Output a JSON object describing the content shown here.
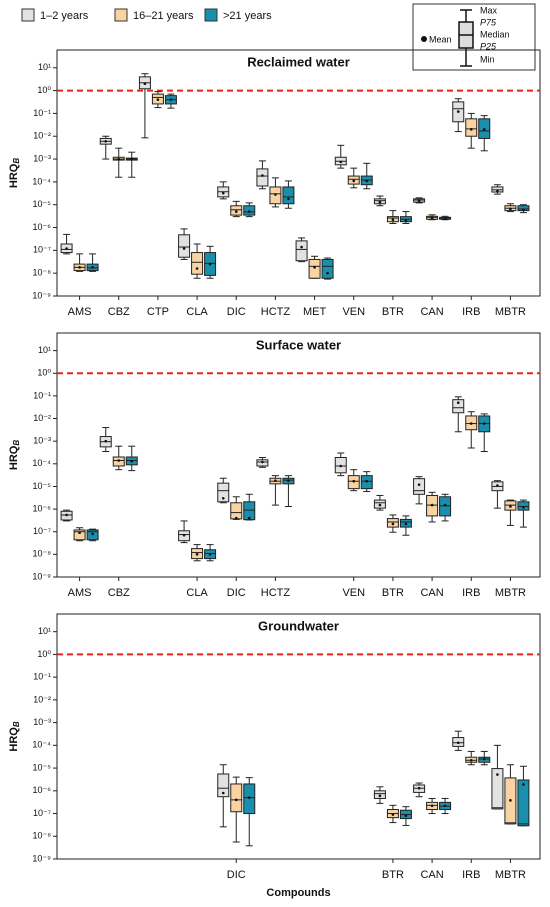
{
  "legend": {
    "series": [
      {
        "name": "1–2 years",
        "color": "#e2e2e2"
      },
      {
        "name": "16–21 years",
        "color": "#f9d3a1"
      },
      {
        ">": null,
        "name": ">21 years",
        "color": "#1a8fab"
      }
    ],
    "key": {
      "mean": "Mean",
      "max": "Max",
      "p75": "P75",
      "median": "Median",
      "p25": "P25",
      "min": "Min"
    }
  },
  "chart_data": [
    {
      "type": "box",
      "title": "Reclaimed water",
      "ylabel": "HRQ",
      "ylabel_sub": "B",
      "log_scale": true,
      "ylim": [
        1e-09,
        60
      ],
      "yticks": [
        {
          "value": 10,
          "label": "10¹"
        },
        {
          "value": 1,
          "label": "10⁰"
        },
        {
          "value": 0.1,
          "label": "10⁻¹"
        },
        {
          "value": 0.01,
          "label": "10⁻²"
        },
        {
          "value": 0.001,
          "label": "10⁻³"
        },
        {
          "value": 0.0001,
          "label": "10⁻⁴"
        },
        {
          "value": 1e-05,
          "label": "10⁻⁵"
        },
        {
          "value": 1e-06,
          "label": "10⁻⁶"
        },
        {
          "value": 1e-07,
          "label": "10⁻⁷"
        },
        {
          "value": 1e-08,
          "label": "10⁻⁸"
        },
        {
          "value": 1e-09,
          "label": "10⁻⁹"
        }
      ],
      "reference_line": {
        "value": 1,
        "color": "#e8231c"
      },
      "categories": [
        "AMS",
        "CBZ",
        "CTP",
        "CLA",
        "DIC",
        "HCTZ",
        "MET",
        "VEN",
        "BTR",
        "CAN",
        "IRB",
        "MBTR"
      ],
      "series": [
        {
          "boxes": [
            [
              7e-08,
              8e-08,
              1.1e-07,
              1.9e-07,
              5e-07,
              1.2e-07
            ],
            [
              0.001,
              0.0045,
              0.006,
              0.008,
              0.01,
              0.006
            ],
            [
              0.0085,
              1.2,
              2.2,
              4,
              5.5,
              2
            ],
            [
              4e-08,
              5e-08,
              1.4e-07,
              4.8e-07,
              8.7e-07,
              1.2e-07
            ],
            [
              1.8e-05,
              2.2e-05,
              3.7e-05,
              6e-05,
              0.0001,
              3.2e-05
            ],
            [
              5e-05,
              6.6e-05,
              0.00018,
              0.00037,
              0.00083,
              0.00019
            ],
            [
              3.2e-08,
              3.5e-08,
              1.1e-07,
              2.6e-07,
              3.5e-07,
              1.4e-07
            ],
            [
              0.0004,
              0.00056,
              0.0008,
              0.0012,
              0.004,
              0.00075
            ],
            [
              9e-06,
              1.1e-05,
              1.5e-05,
              1.8e-05,
              2.4e-05,
              1.3e-05
            ],
            [
              1.2e-05,
              1.3e-05,
              1.6e-05,
              1.8e-05,
              2e-05,
              1.5e-05
            ],
            [
              0.016,
              0.043,
              0.16,
              0.32,
              0.44,
              0.12
            ],
            [
              2.9e-05,
              3.6e-05,
              4.5e-05,
              6e-05,
              7.5e-05,
              4e-05
            ]
          ]
        },
        {
          "boxes": [
            [
              1.2e-08,
              1.3e-08,
              1.8e-08,
              2.5e-08,
              7e-08,
              1.8e-08
            ],
            [
              0.00016,
              0.0009,
              0.001,
              0.0012,
              0.003,
              0.001
            ],
            [
              0.18,
              0.26,
              0.5,
              0.7,
              0.9,
              0.4
            ],
            [
              6e-09,
              9e-09,
              3e-08,
              8e-08,
              1.9e-07,
              1.6e-08
            ],
            [
              3e-06,
              3.5e-06,
              6e-06,
              9e-06,
              1.4e-05,
              5e-06
            ],
            [
              8e-06,
              1.1e-05,
              3e-05,
              6e-05,
              0.00015,
              2.8e-05
            ],
            [
              6e-09,
              6e-09,
              2e-08,
              4e-08,
              5.5e-08,
              1.8e-08
            ],
            [
              5.5e-05,
              8e-05,
              0.00013,
              0.00018,
              0.0004,
              0.00011
            ],
            [
              1.5e-06,
              1.8e-06,
              2.6e-06,
              3e-06,
              5.5e-06,
              2.2e-06
            ],
            [
              2.2e-06,
              2.3e-06,
              2.8e-06,
              3.1e-06,
              3.6e-06,
              2.6e-06
            ],
            [
              0.003,
              0.01,
              0.021,
              0.058,
              0.1,
              0.02
            ],
            [
              5e-06,
              5.5e-06,
              7e-06,
              9e-06,
              1.1e-05,
              6.5e-06
            ]
          ]
        },
        {
          "boxes": [
            [
              1.2e-08,
              1.3e-08,
              1.7e-08,
              2.5e-08,
              7e-08,
              1.8e-08
            ],
            [
              0.00016,
              0.0009,
              0.001,
              0.0011,
              0.002,
              0.001
            ],
            [
              0.17,
              0.26,
              0.4,
              0.6,
              0.7,
              0.4
            ],
            [
              6e-09,
              8e-09,
              2.7e-08,
              8e-08,
              1.5e-07,
              2.5e-08
            ],
            [
              3e-06,
              3.5e-06,
              4.8e-06,
              9e-06,
              1.2e-05,
              5e-06
            ],
            [
              7e-06,
              1.1e-05,
              2.2e-05,
              6e-05,
              0.00011,
              1.8e-05
            ],
            [
              5.5e-09,
              6e-09,
              2e-08,
              4e-08,
              4.6e-08,
              1e-08
            ],
            [
              5e-05,
              7.5e-05,
              0.00012,
              0.00018,
              0.00065,
              0.00011
            ],
            [
              1.5e-06,
              1.8e-06,
              2.3e-06,
              3e-06,
              5e-06,
              2e-06
            ],
            [
              2.2e-06,
              2.3e-06,
              2.6e-06,
              2.8e-06,
              3.1e-06,
              2.4e-06
            ],
            [
              0.0023,
              0.008,
              0.017,
              0.058,
              0.08,
              0.02
            ],
            [
              4.5e-06,
              5.5e-06,
              6.5e-06,
              9e-06,
              1e-05,
              6e-06
            ]
          ]
        }
      ]
    },
    {
      "type": "box",
      "title": "Surface water",
      "ylabel": "HRQ",
      "ylabel_sub": "B",
      "log_scale": true,
      "ylim": [
        1e-09,
        60
      ],
      "yticks": [
        {
          "value": 10,
          "label": "10¹"
        },
        {
          "value": 1,
          "label": "10⁰"
        },
        {
          "value": 0.1,
          "label": "10⁻¹"
        },
        {
          "value": 0.01,
          "label": "10⁻²"
        },
        {
          "value": 0.001,
          "label": "10⁻³"
        },
        {
          "value": 0.0001,
          "label": "10⁻⁴"
        },
        {
          "value": 1e-05,
          "label": "10⁻⁵"
        },
        {
          "value": 1e-06,
          "label": "10⁻⁶"
        },
        {
          "value": 1e-07,
          "label": "10⁻⁷"
        },
        {
          "value": 1e-08,
          "label": "10⁻⁸"
        },
        {
          "value": 1e-09,
          "label": "10⁻⁹"
        }
      ],
      "reference_line": {
        "value": 1,
        "color": "#e8231c"
      },
      "categories": [
        "AMS",
        "CBZ",
        "CLA",
        "DIC",
        "HCTZ",
        "VEN",
        "BTR",
        "CAN",
        "IRB",
        "MBTR"
      ],
      "series": [
        {
          "boxes": [
            [
              3e-07,
              3.3e-07,
              5.5e-07,
              8e-07,
              9e-07,
              5.5e-07
            ],
            [
              0.00035,
              0.00056,
              0.00095,
              0.0016,
              0.004,
              0.001
            ],
            [
              3.3e-08,
              4e-08,
              7.5e-08,
              1.1e-07,
              3e-07,
              7e-08
            ],
            [
              1.9e-06,
              2.1e-06,
              6.5e-06,
              1.4e-05,
              2.3e-05,
              3e-06
            ],
            [
              7e-05,
              8e-05,
              0.00012,
              0.00015,
              0.00019,
              0.00012
            ],
            [
              3e-05,
              4e-05,
              8e-05,
              0.00019,
              0.0003,
              8e-05
            ],
            [
              9e-07,
              1.1e-06,
              1.9e-06,
              2.5e-06,
              4e-06,
              1.5e-06
            ],
            [
              1.7e-06,
              4.5e-06,
              6.5e-06,
              2.2e-05,
              2.7e-05,
              1.2e-05
            ],
            [
              0.0026,
              0.018,
              0.03,
              0.068,
              0.091,
              0.05
            ],
            [
              1.1e-06,
              6.5e-06,
              1e-05,
              1.6e-05,
              1.8e-05,
              1.1e-05
            ]
          ]
        },
        {
          "boxes": [
            [
              4e-08,
              4.4e-08,
              1e-07,
              1.2e-07,
              1.5e-07,
              9e-08
            ],
            [
              5.5e-05,
              8e-05,
              0.00014,
              0.0002,
              0.0006,
              0.00014
            ],
            [
              5.2e-09,
              6.5e-09,
              1.2e-08,
              1.8e-08,
              2.7e-08,
              1e-08
            ],
            [
              3.5e-07,
              3.7e-07,
              7e-07,
              1.9e-06,
              3.5e-06,
              4e-07
            ],
            [
              1.5e-06,
              1.3e-05,
              1.7e-05,
              2.3e-05,
              3e-05,
              1.8e-05
            ],
            [
              6.5e-06,
              8e-06,
              1.7e-05,
              3e-05,
              5.5e-05,
              1.7e-05
            ],
            [
              9.5e-08,
              1.6e-07,
              2.7e-07,
              3.8e-07,
              5.5e-07,
              2.2e-07
            ],
            [
              2.7e-07,
              5e-07,
              1.5e-06,
              4e-06,
              5.5e-06,
              1.5e-06
            ],
            [
              0.0005,
              0.0032,
              0.006,
              0.013,
              0.02,
              0.006
            ],
            [
              1.9e-07,
              9e-07,
              1.5e-06,
              2.3e-06,
              2.5e-06,
              1.3e-06
            ]
          ]
        },
        {
          "boxes": [
            [
              4e-08,
              4.4e-08,
              1e-07,
              1.2e-07,
              1.3e-07,
              8e-08
            ],
            [
              5e-05,
              9e-05,
              0.00014,
              0.0002,
              0.0006,
              0.00013
            ],
            [
              5.2e-09,
              6.5e-09,
              1.1e-08,
              1.6e-08,
              2.7e-08,
              1e-08
            ],
            [
              3.3e-07,
              3.4e-07,
              9e-07,
              2.1e-06,
              4.5e-06,
              4e-07
            ],
            [
              1.3e-06,
              1.3e-05,
              1.9e-05,
              2.3e-05,
              3e-05,
              1.8e-05
            ],
            [
              6e-06,
              8e-06,
              1.7e-05,
              3e-05,
              4.5e-05,
              1.7e-05
            ],
            [
              7e-08,
              1.6e-07,
              2.7e-07,
              3.5e-07,
              5e-07,
              2.2e-07
            ],
            [
              3e-07,
              5e-07,
              1.4e-06,
              3.5e-06,
              4.5e-06,
              1.5e-06
            ],
            [
              0.00035,
              0.0026,
              0.006,
              0.013,
              0.016,
              0.006
            ],
            [
              1.6e-07,
              9e-07,
              1.3e-06,
              2.1e-06,
              2.5e-06,
              1.2e-06
            ]
          ]
        }
      ]
    },
    {
      "type": "box",
      "title": "Groundwater",
      "ylabel": "HRQ",
      "ylabel_sub": "B",
      "xlabel": "Compounds",
      "log_scale": true,
      "ylim": [
        1e-09,
        60
      ],
      "yticks": [
        {
          "value": 10,
          "label": "10¹"
        },
        {
          "value": 1,
          "label": "10⁰"
        },
        {
          "value": 0.1,
          "label": "10⁻¹"
        },
        {
          "value": 0.01,
          "label": "10⁻²"
        },
        {
          "value": 0.001,
          "label": "10⁻³"
        },
        {
          "value": 0.0001,
          "label": "10⁻⁴"
        },
        {
          "value": 1e-05,
          "label": "10⁻⁵"
        },
        {
          "value": 1e-06,
          "label": "10⁻⁶"
        },
        {
          "value": 1e-07,
          "label": "10⁻⁷"
        },
        {
          "value": 1e-08,
          "label": "10⁻⁸"
        },
        {
          "value": 1e-09,
          "label": "10⁻⁹"
        }
      ],
      "reference_line": {
        "value": 1,
        "color": "#e8231c"
      },
      "categories": [
        "DIC",
        "BTR",
        "CAN",
        "IRB",
        "MBTR"
      ],
      "series": [
        {
          "boxes": [
            [
              2.6e-08,
              5.5e-07,
              1.3e-06,
              5.5e-06,
              1.4e-05,
              8e-07
            ],
            [
              2.8e-07,
              4.6e-07,
              7.5e-07,
              1e-06,
              1.5e-06,
              6e-07
            ],
            [
              5.5e-07,
              8.5e-07,
              1.3e-06,
              1.8e-06,
              2.2e-06,
              1.3e-06
            ],
            [
              6e-05,
              9e-05,
              0.00013,
              0.00022,
              0.00042,
              0.00013
            ],
            [
              1.6e-07,
              1.6e-07,
              1.8e-07,
              9.5e-06,
              0.0001,
              5.2e-06
            ]
          ]
        },
        {
          "boxes": [
            [
              5.6e-09,
              1.2e-07,
              4e-07,
              2e-06,
              4e-06,
              4e-07
            ],
            [
              4e-08,
              6.6e-08,
              1e-07,
              1.5e-07,
              2.3e-07,
              9e-08
            ],
            [
              1e-07,
              1.5e-07,
              2.3e-07,
              3.1e-07,
              4.6e-07,
              2.2e-07
            ],
            [
              1.4e-05,
              1.8e-05,
              2.2e-05,
              3e-05,
              5.4e-05,
              2.2e-05
            ],
            [
              3.5e-08,
              3.5e-08,
              3.9e-08,
              3.7e-06,
              1.4e-05,
              3.8e-07
            ]
          ]
        },
        {
          "boxes": [
            [
              3.8e-09,
              1e-07,
              5e-07,
              2e-06,
              3.8e-06,
              5e-07
            ],
            [
              3e-08,
              6e-08,
              9e-08,
              1.4e-07,
              2e-07,
              8e-08
            ],
            [
              1e-07,
              1.5e-07,
              2.1e-07,
              3.1e-07,
              4.6e-07,
              2.2e-07
            ],
            [
              1.4e-05,
              1.8e-05,
              2.5e-05,
              3e-05,
              5.4e-05,
              2.5e-05
            ],
            [
              2.9e-08,
              2.9e-08,
              3.5e-08,
              3e-06,
              1.2e-05,
              1.9e-06
            ]
          ]
        }
      ]
    }
  ]
}
